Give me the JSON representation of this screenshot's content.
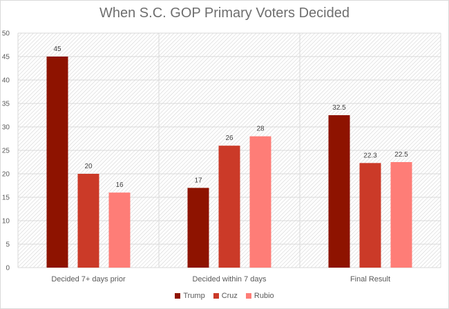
{
  "chart_data": {
    "type": "bar",
    "title": "When S.C. GOP Primary Voters Decided",
    "xlabel": "",
    "ylabel": "",
    "ylim": [
      0,
      50
    ],
    "yticks": [
      0,
      5,
      10,
      15,
      20,
      25,
      30,
      35,
      40,
      45,
      50
    ],
    "grid": true,
    "legend_position": "bottom",
    "categories": [
      "Decided 7+ days prior",
      "Decided within 7 days",
      "Final Result"
    ],
    "series": [
      {
        "name": "Trump",
        "color": "#8e1300",
        "values": [
          45,
          17,
          32.5
        ],
        "labels": [
          "45",
          "17",
          "32.5"
        ]
      },
      {
        "name": "Cruz",
        "color": "#cb3a28",
        "values": [
          20,
          26,
          22.3
        ],
        "labels": [
          "20",
          "26",
          "22.3"
        ]
      },
      {
        "name": "Rubio",
        "color": "#fe7d77",
        "values": [
          16,
          28,
          22.5
        ],
        "labels": [
          "16",
          "28",
          "22.5"
        ]
      }
    ]
  }
}
